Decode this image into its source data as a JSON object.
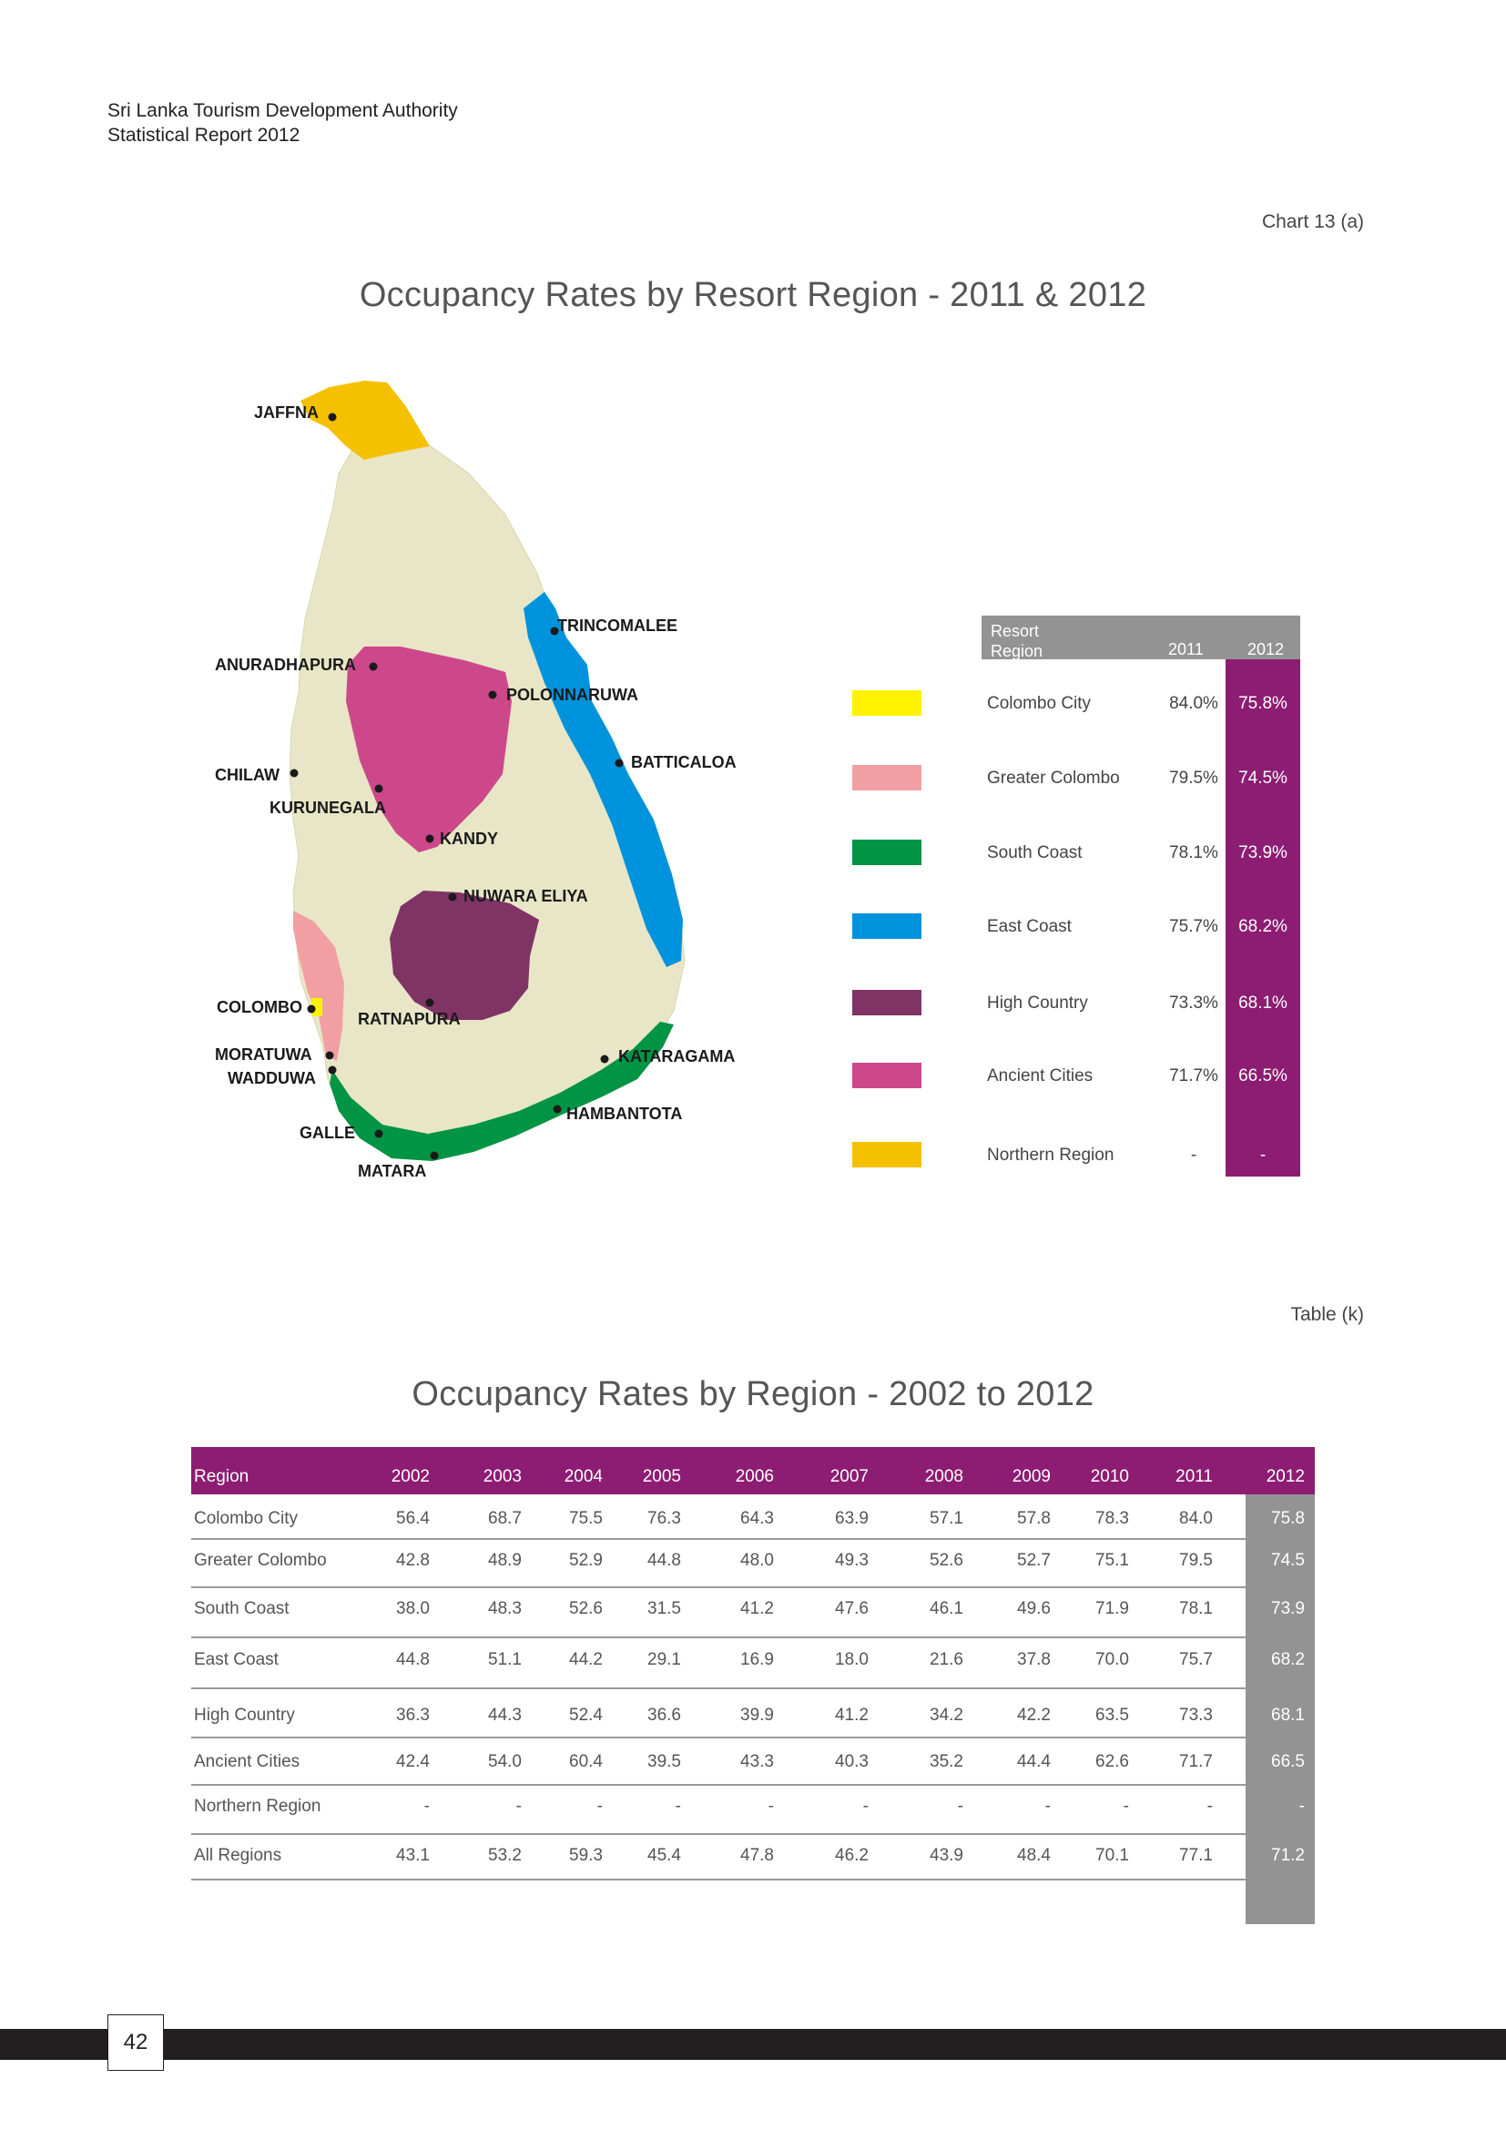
{
  "header": {
    "line1": "Sri Lanka Tourism Development Authority",
    "line2": "Statistical Report 2012"
  },
  "chart_ref": "Chart 13 (a)",
  "chart_title": "Occupancy Rates by Resort Region  - 2011 & 2012",
  "map": {
    "colors": {
      "colombo_city": "#fff200",
      "greater_colombo": "#f29fa4",
      "south_coast": "#009444",
      "east_coast": "#0093dd",
      "high_country": "#803466",
      "ancient_cities": "#cc488a",
      "northern_region": "#f5c000",
      "land": "#e8e6c6"
    },
    "labels": {
      "jaffna": "JAFFNA",
      "trincomalee": "TRINCOMALEE",
      "anuradhapura": "ANURADHAPURA",
      "polonnaruwa": "POLONNARUWA",
      "batticaloa": "BATTICALOA",
      "chilaw": "CHILAW",
      "kurunegala": "KURUNEGALA",
      "kandy": "KANDY",
      "nuwara_eliya": "NUWARA ELIYA",
      "colombo": "COLOMBO",
      "ratnapura": "RATNAPURA",
      "moratuwa": "MORATUWA",
      "wadduwa": "WADDUWA",
      "kataragama": "KATARAGAMA",
      "hambantota": "HAMBANTOTA",
      "galle": "GALLE",
      "matara": "MATARA"
    }
  },
  "legend": {
    "head_resort": "Resort",
    "head_region": "Region",
    "head_2011": "2011",
    "head_2012": "2012",
    "rows": [
      {
        "name": "Colombo City",
        "v2011": "84.0%",
        "v2012": "75.8%",
        "color": "#fff200"
      },
      {
        "name": "Greater Colombo",
        "v2011": "79.5%",
        "v2012": "74.5%",
        "color": "#f29fa4"
      },
      {
        "name": "South Coast",
        "v2011": "78.1%",
        "v2012": "73.9%",
        "color": "#009444"
      },
      {
        "name": "East Coast",
        "v2011": "75.7%",
        "v2012": "68.2%",
        "color": "#0093dd"
      },
      {
        "name": "High Country",
        "v2011": "73.3%",
        "v2012": "68.1%",
        "color": "#803466"
      },
      {
        "name": "Ancient Cities",
        "v2011": "71.7%",
        "v2012": "66.5%",
        "color": "#cc488a"
      },
      {
        "name": "Northern Region",
        "v2011": "-",
        "v2012": "-",
        "color": "#f5c000"
      }
    ]
  },
  "table_ref": "Table (k)",
  "table_title": "Occupancy Rates by Region  - 2002 to 2012",
  "table": {
    "region_head": "Region",
    "years": [
      "2002",
      "2003",
      "2004",
      "2005",
      "2006",
      "2007",
      "2008",
      "2009",
      "2010",
      "2011",
      "2012"
    ],
    "rows": [
      {
        "region": "Colombo City",
        "values": [
          "56.4",
          "68.7",
          "75.5",
          "76.3",
          "64.3",
          "63.9",
          "57.1",
          "57.8",
          "78.3",
          "84.0",
          "75.8"
        ]
      },
      {
        "region": "Greater Colombo",
        "values": [
          "42.8",
          "48.9",
          "52.9",
          "44.8",
          "48.0",
          "49.3",
          "52.6",
          "52.7",
          "75.1",
          "79.5",
          "74.5"
        ]
      },
      {
        "region": "South Coast",
        "values": [
          "38.0",
          "48.3",
          "52.6",
          "31.5",
          "41.2",
          "47.6",
          "46.1",
          "49.6",
          "71.9",
          "78.1",
          "73.9"
        ]
      },
      {
        "region": "East Coast",
        "values": [
          "44.8",
          "51.1",
          "44.2",
          "29.1",
          "16.9",
          "18.0",
          "21.6",
          "37.8",
          "70.0",
          "75.7",
          "68.2"
        ]
      },
      {
        "region": "High Country",
        "values": [
          "36.3",
          "44.3",
          "52.4",
          "36.6",
          "39.9",
          "41.2",
          "34.2",
          "42.2",
          "63.5",
          "73.3",
          "68.1"
        ]
      },
      {
        "region": "Ancient Cities",
        "values": [
          "42.4",
          "54.0",
          "60.4",
          "39.5",
          "43.3",
          "40.3",
          "35.2",
          "44.4",
          "62.6",
          "71.7",
          "66.5"
        ]
      },
      {
        "region": "Northern Region",
        "values": [
          "-",
          "-",
          "-",
          "-",
          "-",
          "-",
          "-",
          "-",
          "-",
          "-",
          "-"
        ]
      },
      {
        "region": "All Regions",
        "values": [
          "43.1",
          "53.2",
          "59.3",
          "45.4",
          "47.8",
          "46.2",
          "43.9",
          "48.4",
          "70.1",
          "77.1",
          "71.2"
        ]
      }
    ]
  },
  "page_number": "42"
}
